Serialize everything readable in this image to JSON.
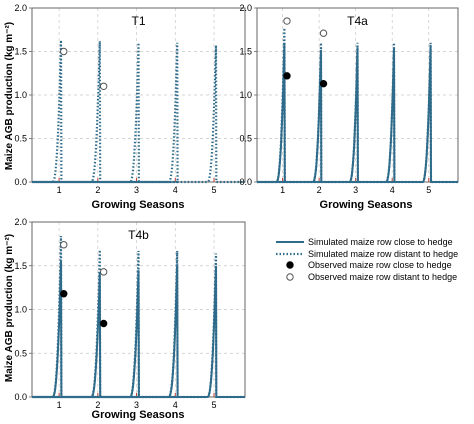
{
  "colors": {
    "line": "#2f6b8a",
    "grid": "#c8c8c8",
    "tick_red": "#c0392b",
    "observed_close": "#000000",
    "observed_distant": "#ffffff"
  },
  "ylabel": "Maize AGB production (kg m⁻²)",
  "xlabel": "Growing Seasons",
  "legend": {
    "close": "Simulated maize row close to hedge",
    "distant": "Simulated maize row distant to hedge",
    "obs_close": "Observed maize row close to hedge",
    "obs_distant": "Observed maize row distant to hedge"
  },
  "chart_data": [
    {
      "type": "line",
      "title": "T1",
      "xlabel": "",
      "ylabel": "Maize AGB production (kg m⁻²)",
      "xlim": [
        0.3,
        5.8
      ],
      "ylim": [
        0,
        2.0
      ],
      "x_ticks": [
        "1",
        "2",
        "3",
        "4",
        "5"
      ],
      "y_ticks": [
        "0.0",
        "0.5",
        "1.0",
        "1.5",
        "2.0"
      ],
      "grid": true,
      "series": [
        {
          "name": "Simulated maize row distant to hedge",
          "style": "dotted",
          "peaks": [
            1.63,
            1.62,
            1.6,
            1.6,
            1.57
          ]
        }
      ],
      "observed_close": [],
      "observed_distant": [
        {
          "x": 1.12,
          "y": 1.5
        },
        {
          "x": 2.15,
          "y": 1.1
        }
      ]
    },
    {
      "type": "line",
      "title": "T4a",
      "xlabel": "Growing Seasons",
      "ylabel": "",
      "xlim": [
        0.3,
        5.8
      ],
      "ylim": [
        0,
        2.0
      ],
      "x_ticks": [
        "1",
        "2",
        "3",
        "4",
        "5"
      ],
      "y_ticks": [
        "0.0",
        "0.5",
        "1.0",
        "1.5",
        "2.0"
      ],
      "grid": true,
      "series": [
        {
          "name": "Simulated maize row close to hedge",
          "style": "solid",
          "peaks": [
            1.6,
            1.52,
            1.55,
            1.55,
            1.55
          ]
        },
        {
          "name": "Simulated maize row distant to hedge",
          "style": "dotted",
          "peaks": [
            1.77,
            1.6,
            1.6,
            1.6,
            1.6
          ]
        }
      ],
      "observed_close": [
        {
          "x": 1.12,
          "y": 1.22
        },
        {
          "x": 2.12,
          "y": 1.13
        }
      ],
      "observed_distant": [
        {
          "x": 1.12,
          "y": 1.85
        },
        {
          "x": 2.12,
          "y": 1.71
        }
      ]
    },
    {
      "type": "line",
      "title": "T4b",
      "xlabel": "Growing Seasons",
      "ylabel": "Maize AGB production (kg m⁻²)",
      "xlim": [
        0.3,
        5.8
      ],
      "ylim": [
        0,
        2.0
      ],
      "x_ticks": [
        "1",
        "2",
        "3",
        "4",
        "5"
      ],
      "y_ticks": [
        "0.0",
        "0.5",
        "1.0",
        "1.5",
        "2.0"
      ],
      "grid": true,
      "series": [
        {
          "name": "Simulated maize row close to hedge",
          "style": "solid",
          "peaks": [
            1.55,
            1.42,
            1.45,
            1.5,
            1.5
          ]
        },
        {
          "name": "Simulated maize row distant to hedge",
          "style": "dotted",
          "peaks": [
            1.84,
            1.68,
            1.67,
            1.67,
            1.64
          ]
        }
      ],
      "observed_close": [
        {
          "x": 1.12,
          "y": 1.18
        },
        {
          "x": 2.15,
          "y": 0.84
        }
      ],
      "observed_distant": [
        {
          "x": 1.12,
          "y": 1.74
        },
        {
          "x": 2.15,
          "y": 1.43
        }
      ]
    }
  ]
}
